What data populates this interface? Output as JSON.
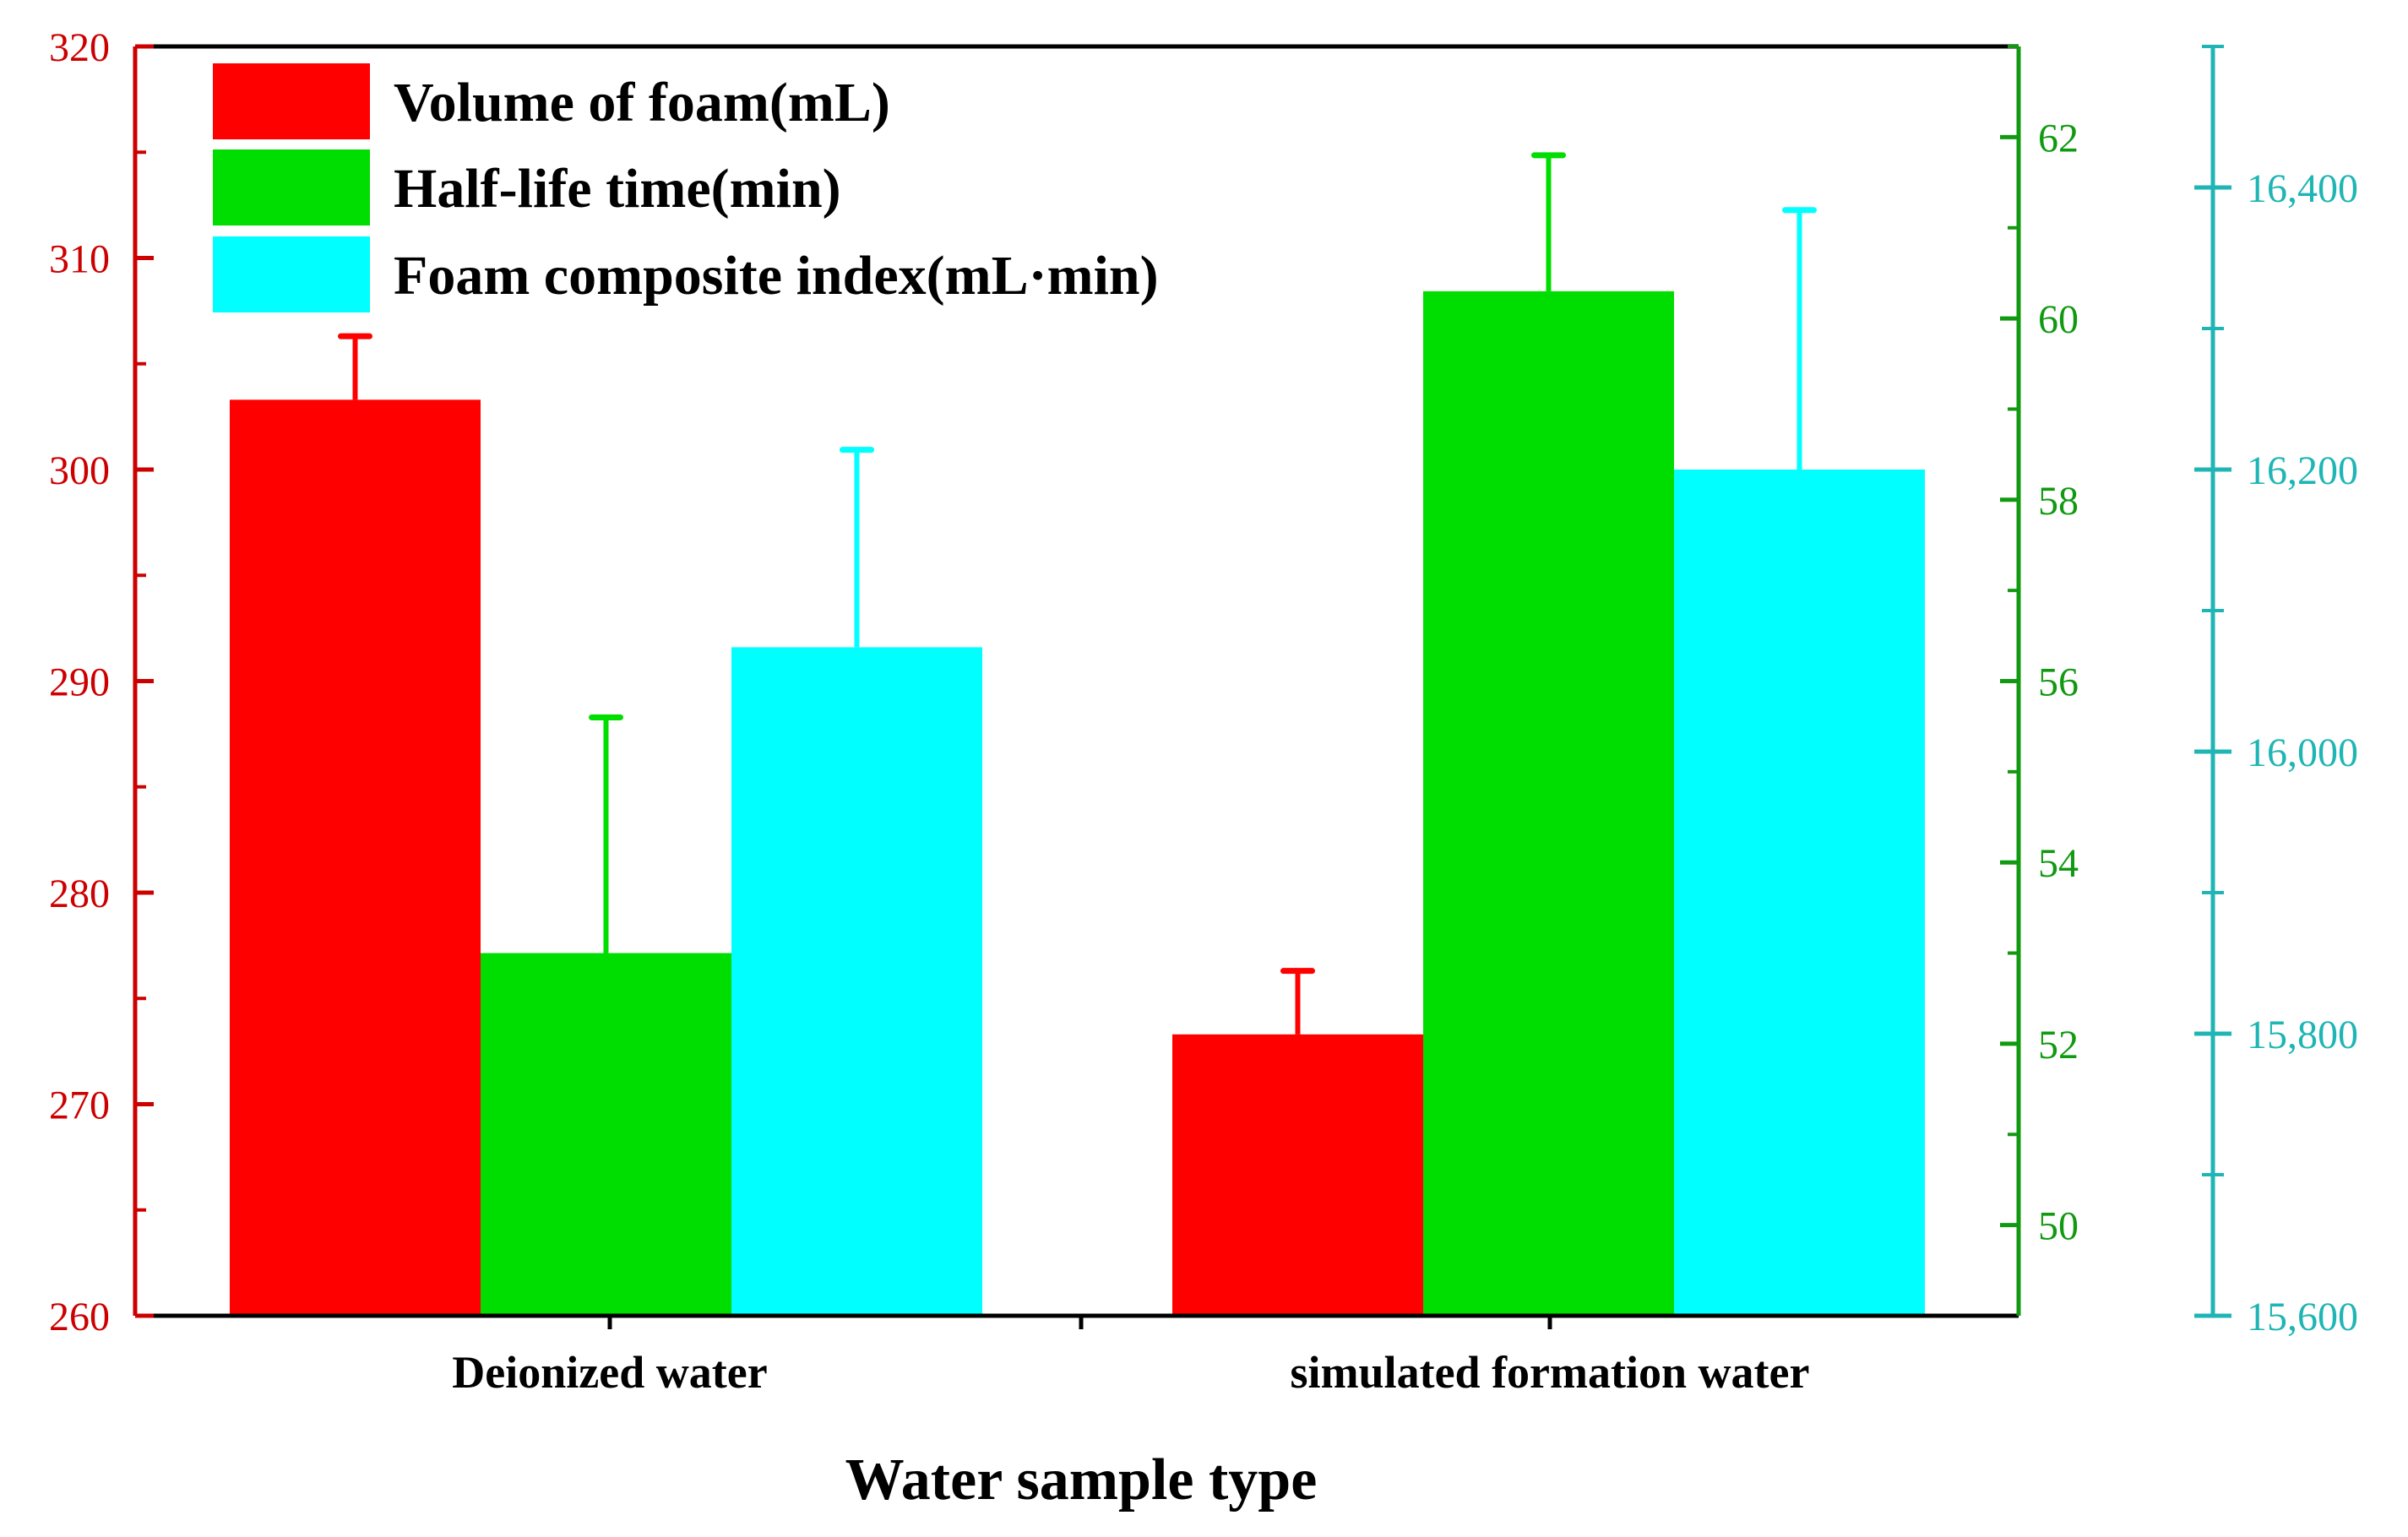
{
  "chart_data": {
    "type": "bar",
    "title": "",
    "xlabel": "Water sample type",
    "categories": [
      "Deionized water",
      "simulated formation water"
    ],
    "series": [
      {
        "name": "Volume of foam(mL)",
        "color": "#ff0000",
        "axis": "left",
        "values": [
          303.3,
          273.3
        ],
        "errors": [
          3.0,
          3.0
        ]
      },
      {
        "name": "Half-life time(min)",
        "color": "#00dd00",
        "axis": "right1",
        "values": [
          53.0,
          60.3
        ],
        "errors": [
          2.6,
          1.5
        ]
      },
      {
        "name": "Foam composite index(mL·min)",
        "color": "#00ffff",
        "axis": "right2",
        "values": [
          16074,
          16200
        ],
        "errors": [
          140,
          184
        ]
      }
    ],
    "axes": {
      "left": {
        "range": [
          260,
          320
        ],
        "ticks": [
          "260",
          "270",
          "280",
          "290",
          "300",
          "310",
          "320"
        ],
        "color": "#cc0000"
      },
      "right1": {
        "range": [
          49,
          63
        ],
        "ticks": [
          "50",
          "52",
          "54",
          "56",
          "58",
          "60",
          "62"
        ],
        "color": "#119911"
      },
      "right2": {
        "range": [
          15600,
          16500
        ],
        "ticks": [
          "15,600",
          "15,800",
          "16,000",
          "16,200",
          "16,400"
        ],
        "color": "#1fb5b5"
      }
    },
    "legend_position": "top-left"
  }
}
